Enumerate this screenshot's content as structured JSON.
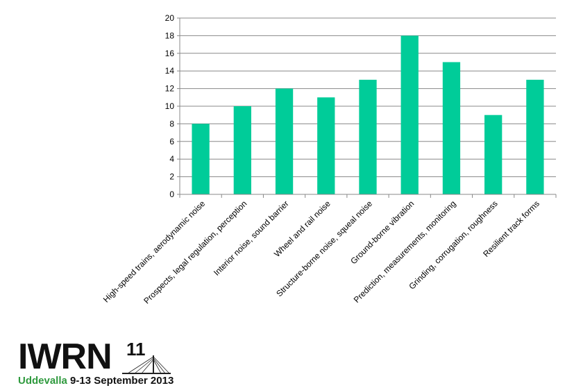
{
  "chart_data": {
    "type": "bar",
    "categories": [
      "High-speed trains, aerodynamic noise",
      "Prospects, legal regulation, perception",
      "Interior noise, sound barrier",
      "Wheel and rail noise",
      "Structure-borne noise, squeal noise",
      "Ground-borne vibration",
      "Prediction, measurements, monitoring",
      "Grinding, corrugation, roughness",
      "Resilient track forms"
    ],
    "values": [
      8,
      10,
      12,
      11,
      13,
      18,
      15,
      9,
      13
    ],
    "ylim": [
      0,
      20
    ],
    "yticks": [
      0,
      2,
      4,
      6,
      8,
      10,
      12,
      14,
      16,
      18,
      20
    ],
    "grid": true,
    "bar_color": "#00cc99",
    "grid_color": "#888888"
  },
  "logo": {
    "main": "IWRN",
    "edition": "11",
    "place": "Uddevalla",
    "dates": "9-13 September 2013"
  }
}
